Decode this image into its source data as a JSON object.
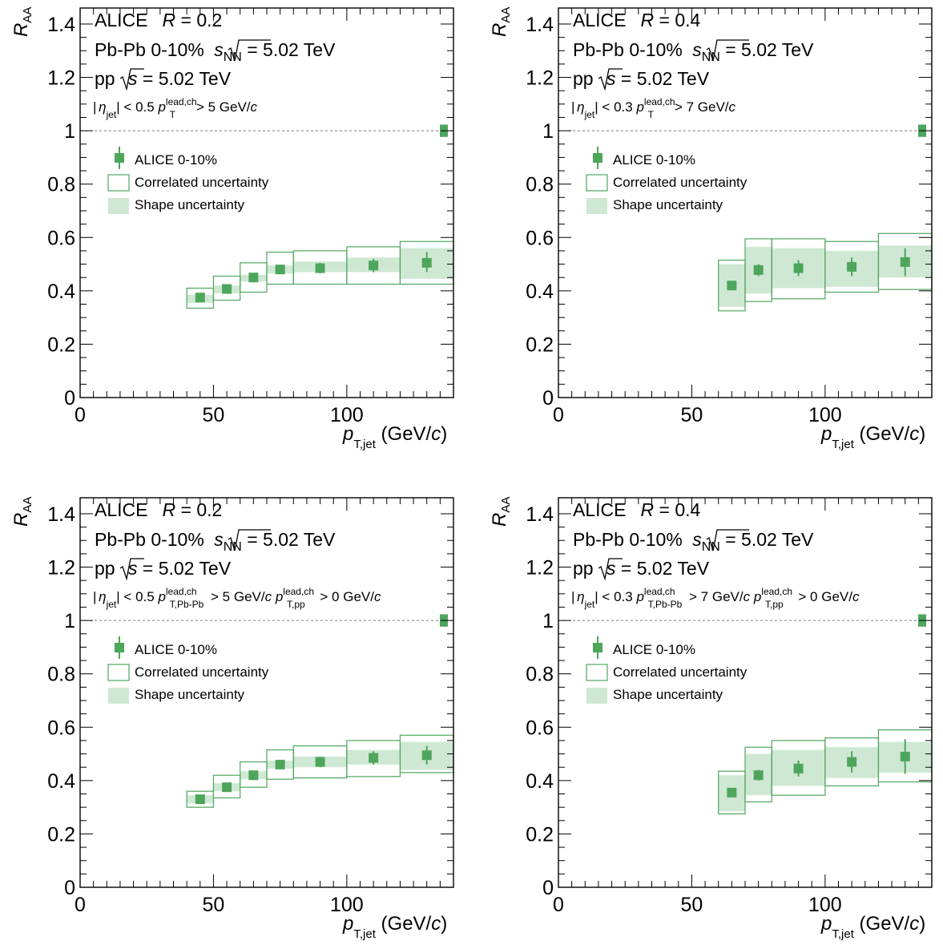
{
  "colors": {
    "marker": "#4ea55c",
    "box_line": "#4ea55c",
    "shape_fill": "#cfe8d3",
    "reference_line": "#777777",
    "axis": "#000000"
  },
  "chart_data": [
    {
      "type": "scatter",
      "xlabel": {
        "main": "p",
        "sub": "T,jet",
        "unit": " (GeV/",
        "unit_italic": "c",
        "unit_close": ")"
      },
      "ylabel": {
        "main": "R",
        "sub": "AA"
      },
      "xlim": [
        0,
        140
      ],
      "ylim": [
        0,
        1.46
      ],
      "x_ticks": [
        "0",
        "50",
        "100"
      ],
      "y_ticks": [
        "0",
        "0.2",
        "0.4",
        "0.6",
        "0.8",
        "1",
        "1.2",
        "1.4"
      ],
      "reference_line": 1,
      "lines": {
        "l1a": "ALICE",
        "l1b": "R",
        "l1c": " = 0.2",
        "l2a": "Pb-Pb  0-10%  ",
        "l2b": "s",
        "l2c": "NN",
        "l2d": " = 5.02 TeV",
        "l3a": "pp  ",
        "l3b": "s",
        "l3c": " = 5.02 TeV",
        "sel": [
          {
            "t": "| ",
            "s": "n"
          },
          {
            "t": "η",
            "s": "i",
            "dx": -2
          },
          {
            "t": "jet",
            "s": "sub"
          },
          {
            "t": "| < 0.5  ",
            "s": "n"
          },
          {
            "t": "p",
            "s": "i"
          },
          {
            "t": "lead,ch",
            "s": "sup"
          },
          {
            "t": "T",
            "s": "sub",
            "dx": -34
          },
          {
            "t": "> 5 GeV/",
            "s": "n",
            "dx": 26
          },
          {
            "t": "c",
            "s": "i"
          }
        ]
      },
      "legend": {
        "data": "ALICE 0-10%",
        "correlated": "Correlated uncertainty",
        "shape": "Shape uncertainty"
      },
      "norm_uncertainty": [
        0.977,
        1.023
      ],
      "points": [
        {
          "xlo": 40,
          "xhi": 50,
          "x": 45,
          "y": 0.375,
          "stat_lo": 0.36,
          "stat_hi": 0.39,
          "shape_lo": 0.355,
          "shape_hi": 0.385,
          "corr_lo": 0.335,
          "corr_hi": 0.41
        },
        {
          "xlo": 50,
          "xhi": 60,
          "x": 55,
          "y": 0.407,
          "stat_lo": 0.39,
          "stat_hi": 0.42,
          "shape_lo": 0.39,
          "shape_hi": 0.42,
          "corr_lo": 0.365,
          "corr_hi": 0.455
        },
        {
          "xlo": 60,
          "xhi": 70,
          "x": 65,
          "y": 0.45,
          "stat_lo": 0.435,
          "stat_hi": 0.46,
          "shape_lo": 0.435,
          "shape_hi": 0.46,
          "corr_lo": 0.395,
          "corr_hi": 0.505
        },
        {
          "xlo": 70,
          "xhi": 80,
          "x": 75,
          "y": 0.48,
          "stat_lo": 0.465,
          "stat_hi": 0.495,
          "shape_lo": 0.465,
          "shape_hi": 0.495,
          "corr_lo": 0.425,
          "corr_hi": 0.545
        },
        {
          "xlo": 80,
          "xhi": 100,
          "x": 90,
          "y": 0.485,
          "stat_lo": 0.465,
          "stat_hi": 0.505,
          "shape_lo": 0.47,
          "shape_hi": 0.51,
          "corr_lo": 0.425,
          "corr_hi": 0.55
        },
        {
          "xlo": 100,
          "xhi": 120,
          "x": 110,
          "y": 0.495,
          "stat_lo": 0.47,
          "stat_hi": 0.52,
          "shape_lo": 0.47,
          "shape_hi": 0.525,
          "corr_lo": 0.425,
          "corr_hi": 0.565
        },
        {
          "xlo": 120,
          "xhi": 140,
          "x": 130,
          "y": 0.505,
          "stat_lo": 0.47,
          "stat_hi": 0.545,
          "shape_lo": 0.445,
          "shape_hi": 0.56,
          "corr_lo": 0.425,
          "corr_hi": 0.585
        }
      ]
    },
    {
      "type": "scatter",
      "xlabel": {
        "main": "p",
        "sub": "T,jet",
        "unit": " (GeV/",
        "unit_italic": "c",
        "unit_close": ")"
      },
      "ylabel": {
        "main": "R",
        "sub": "AA"
      },
      "xlim": [
        0,
        140
      ],
      "ylim": [
        0,
        1.46
      ],
      "x_ticks": [
        "0",
        "50",
        "100"
      ],
      "y_ticks": [
        "0",
        "0.2",
        "0.4",
        "0.6",
        "0.8",
        "1",
        "1.2",
        "1.4"
      ],
      "reference_line": 1,
      "lines": {
        "l1a": "ALICE",
        "l1b": "R",
        "l1c": " = 0.4",
        "l2a": "Pb-Pb  0-10%  ",
        "l2b": "s",
        "l2c": "NN",
        "l2d": " = 5.02 TeV",
        "l3a": "pp  ",
        "l3b": "s",
        "l3c": " = 5.02 TeV",
        "sel": [
          {
            "t": "| ",
            "s": "n"
          },
          {
            "t": "η",
            "s": "i",
            "dx": -2
          },
          {
            "t": "jet",
            "s": "sub"
          },
          {
            "t": "| < 0.3  ",
            "s": "n"
          },
          {
            "t": "p",
            "s": "i"
          },
          {
            "t": "lead,ch",
            "s": "sup"
          },
          {
            "t": "T",
            "s": "sub",
            "dx": -34
          },
          {
            "t": "> 7 GeV/",
            "s": "n",
            "dx": 26
          },
          {
            "t": "c",
            "s": "i"
          }
        ]
      },
      "legend": {
        "data": "ALICE 0-10%",
        "correlated": "Correlated uncertainty",
        "shape": "Shape uncertainty"
      },
      "norm_uncertainty": [
        0.977,
        1.023
      ],
      "points": [
        {
          "xlo": 60,
          "xhi": 70,
          "x": 65,
          "y": 0.42,
          "stat_lo": 0.405,
          "stat_hi": 0.435,
          "shape_lo": 0.34,
          "shape_hi": 0.5,
          "corr_lo": 0.325,
          "corr_hi": 0.515
        },
        {
          "xlo": 70,
          "xhi": 80,
          "x": 75,
          "y": 0.478,
          "stat_lo": 0.455,
          "stat_hi": 0.5,
          "shape_lo": 0.39,
          "shape_hi": 0.565,
          "corr_lo": 0.36,
          "corr_hi": 0.595
        },
        {
          "xlo": 80,
          "xhi": 100,
          "x": 90,
          "y": 0.485,
          "stat_lo": 0.455,
          "stat_hi": 0.515,
          "shape_lo": 0.41,
          "shape_hi": 0.56,
          "corr_lo": 0.37,
          "corr_hi": 0.595
        },
        {
          "xlo": 100,
          "xhi": 120,
          "x": 110,
          "y": 0.49,
          "stat_lo": 0.455,
          "stat_hi": 0.525,
          "shape_lo": 0.415,
          "shape_hi": 0.55,
          "corr_lo": 0.395,
          "corr_hi": 0.585
        },
        {
          "xlo": 120,
          "xhi": 140,
          "x": 130,
          "y": 0.508,
          "stat_lo": 0.455,
          "stat_hi": 0.56,
          "shape_lo": 0.45,
          "shape_hi": 0.57,
          "corr_lo": 0.405,
          "corr_hi": 0.615
        }
      ]
    },
    {
      "type": "scatter",
      "xlabel": {
        "main": "p",
        "sub": "T,jet",
        "unit": " (GeV/",
        "unit_italic": "c",
        "unit_close": ")"
      },
      "ylabel": {
        "main": "R",
        "sub": "AA"
      },
      "xlim": [
        0,
        140
      ],
      "ylim": [
        0,
        1.46
      ],
      "x_ticks": [
        "0",
        "50",
        "100"
      ],
      "y_ticks": [
        "0",
        "0.2",
        "0.4",
        "0.6",
        "0.8",
        "1",
        "1.2",
        "1.4"
      ],
      "reference_line": 1,
      "lines": {
        "l1a": "ALICE",
        "l1b": "R",
        "l1c": " = 0.2",
        "l2a": "Pb-Pb  0-10%  ",
        "l2b": "s",
        "l2c": "NN",
        "l2d": " = 5.02 TeV",
        "l3a": "pp  ",
        "l3b": "s",
        "l3c": " = 5.02 TeV",
        "sel": [
          {
            "t": "| ",
            "s": "n"
          },
          {
            "t": "η",
            "s": "i",
            "dx": -2
          },
          {
            "t": "jet",
            "s": "sub"
          },
          {
            "t": "| < 0.5  ",
            "s": "n"
          },
          {
            "t": "p",
            "s": "i"
          },
          {
            "t": "lead,ch",
            "s": "sup"
          },
          {
            "t": "T,Pb-Pb",
            "s": "sub",
            "dx": -34
          },
          {
            "t": " > 5 GeV/",
            "s": "n",
            "dx": 4
          },
          {
            "t": "c",
            "s": "i"
          },
          {
            "t": "   ",
            "s": "n"
          },
          {
            "t": "p",
            "s": "i"
          },
          {
            "t": "lead,ch",
            "s": "sup"
          },
          {
            "t": "T,pp",
            "s": "sub",
            "dx": -34
          },
          {
            "t": " > 0 GeV/",
            "s": "n",
            "dx": 14
          },
          {
            "t": "c",
            "s": "i"
          }
        ]
      },
      "legend": {
        "data": "ALICE 0-10%",
        "correlated": "Correlated uncertainty",
        "shape": "Shape uncertainty"
      },
      "norm_uncertainty": [
        0.977,
        1.023
      ],
      "points": [
        {
          "xlo": 40,
          "xhi": 50,
          "x": 45,
          "y": 0.33,
          "stat_lo": 0.315,
          "stat_hi": 0.345,
          "shape_lo": 0.315,
          "shape_hi": 0.345,
          "corr_lo": 0.3,
          "corr_hi": 0.36
        },
        {
          "xlo": 50,
          "xhi": 60,
          "x": 55,
          "y": 0.375,
          "stat_lo": 0.36,
          "stat_hi": 0.39,
          "shape_lo": 0.36,
          "shape_hi": 0.39,
          "corr_lo": 0.335,
          "corr_hi": 0.42
        },
        {
          "xlo": 60,
          "xhi": 70,
          "x": 65,
          "y": 0.42,
          "stat_lo": 0.405,
          "stat_hi": 0.435,
          "shape_lo": 0.405,
          "shape_hi": 0.435,
          "corr_lo": 0.375,
          "corr_hi": 0.47
        },
        {
          "xlo": 70,
          "xhi": 80,
          "x": 75,
          "y": 0.46,
          "stat_lo": 0.445,
          "stat_hi": 0.475,
          "shape_lo": 0.445,
          "shape_hi": 0.475,
          "corr_lo": 0.405,
          "corr_hi": 0.515
        },
        {
          "xlo": 80,
          "xhi": 100,
          "x": 90,
          "y": 0.47,
          "stat_lo": 0.45,
          "stat_hi": 0.49,
          "shape_lo": 0.45,
          "shape_hi": 0.49,
          "corr_lo": 0.41,
          "corr_hi": 0.53
        },
        {
          "xlo": 100,
          "xhi": 120,
          "x": 110,
          "y": 0.485,
          "stat_lo": 0.46,
          "stat_hi": 0.51,
          "shape_lo": 0.46,
          "shape_hi": 0.515,
          "corr_lo": 0.415,
          "corr_hi": 0.55
        },
        {
          "xlo": 120,
          "xhi": 140,
          "x": 130,
          "y": 0.495,
          "stat_lo": 0.46,
          "stat_hi": 0.53,
          "shape_lo": 0.44,
          "shape_hi": 0.545,
          "corr_lo": 0.43,
          "corr_hi": 0.57
        }
      ]
    },
    {
      "type": "scatter",
      "xlabel": {
        "main": "p",
        "sub": "T,jet",
        "unit": " (GeV/",
        "unit_italic": "c",
        "unit_close": ")"
      },
      "ylabel": {
        "main": "R",
        "sub": "AA"
      },
      "xlim": [
        0,
        140
      ],
      "ylim": [
        0,
        1.46
      ],
      "x_ticks": [
        "0",
        "50",
        "100"
      ],
      "y_ticks": [
        "0",
        "0.2",
        "0.4",
        "0.6",
        "0.8",
        "1",
        "1.2",
        "1.4"
      ],
      "reference_line": 1,
      "lines": {
        "l1a": "ALICE",
        "l1b": "R",
        "l1c": " = 0.4",
        "l2a": "Pb-Pb  0-10%  ",
        "l2b": "s",
        "l2c": "NN",
        "l2d": " = 5.02 TeV",
        "l3a": "pp  ",
        "l3b": "s",
        "l3c": " = 5.02 TeV",
        "sel": [
          {
            "t": "| ",
            "s": "n"
          },
          {
            "t": "η",
            "s": "i",
            "dx": -2
          },
          {
            "t": "jet",
            "s": "sub"
          },
          {
            "t": "| < 0.3  ",
            "s": "n"
          },
          {
            "t": "p",
            "s": "i"
          },
          {
            "t": "lead,ch",
            "s": "sup"
          },
          {
            "t": "T,Pb-Pb",
            "s": "sub",
            "dx": -34
          },
          {
            "t": " > 7 GeV/",
            "s": "n",
            "dx": 4
          },
          {
            "t": "c",
            "s": "i"
          },
          {
            "t": "   ",
            "s": "n"
          },
          {
            "t": "p",
            "s": "i"
          },
          {
            "t": "lead,ch",
            "s": "sup"
          },
          {
            "t": "T,pp",
            "s": "sub",
            "dx": -34
          },
          {
            "t": " > 0 GeV/",
            "s": "n",
            "dx": 14
          },
          {
            "t": "c",
            "s": "i"
          }
        ]
      },
      "legend": {
        "data": "ALICE 0-10%",
        "correlated": "Correlated uncertainty",
        "shape": "Shape uncertainty"
      },
      "norm_uncertainty": [
        0.977,
        1.023
      ],
      "points": [
        {
          "xlo": 60,
          "xhi": 70,
          "x": 65,
          "y": 0.355,
          "stat_lo": 0.34,
          "stat_hi": 0.37,
          "shape_lo": 0.285,
          "shape_hi": 0.42,
          "corr_lo": 0.275,
          "corr_hi": 0.435
        },
        {
          "xlo": 70,
          "xhi": 80,
          "x": 75,
          "y": 0.42,
          "stat_lo": 0.4,
          "stat_hi": 0.44,
          "shape_lo": 0.345,
          "shape_hi": 0.5,
          "corr_lo": 0.32,
          "corr_hi": 0.525
        },
        {
          "xlo": 80,
          "xhi": 100,
          "x": 90,
          "y": 0.445,
          "stat_lo": 0.415,
          "stat_hi": 0.475,
          "shape_lo": 0.38,
          "shape_hi": 0.515,
          "corr_lo": 0.345,
          "corr_hi": 0.55
        },
        {
          "xlo": 100,
          "xhi": 120,
          "x": 110,
          "y": 0.47,
          "stat_lo": 0.43,
          "stat_hi": 0.51,
          "shape_lo": 0.41,
          "shape_hi": 0.525,
          "corr_lo": 0.38,
          "corr_hi": 0.56
        },
        {
          "xlo": 120,
          "xhi": 140,
          "x": 130,
          "y": 0.49,
          "stat_lo": 0.425,
          "stat_hi": 0.555,
          "shape_lo": 0.43,
          "shape_hi": 0.545,
          "corr_lo": 0.395,
          "corr_hi": 0.59
        }
      ]
    }
  ]
}
